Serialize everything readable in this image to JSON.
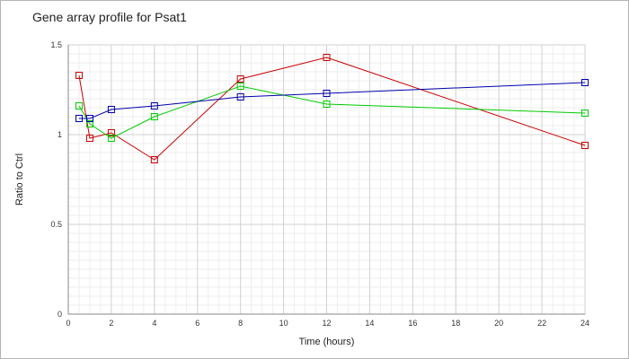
{
  "chart_data": {
    "type": "line",
    "title": "Gene array profile for Psat1",
    "xlabel": "Time (hours)",
    "ylabel": "Ratio to Ctrl",
    "xlim": [
      0,
      24
    ],
    "ylim": [
      0,
      1.5
    ],
    "xticks": [
      0,
      2,
      4,
      6,
      8,
      10,
      12,
      14,
      16,
      18,
      20,
      22,
      24
    ],
    "yticks": [
      0,
      0.5,
      1,
      1.5
    ],
    "ytick_labels": [
      "0",
      "0.5",
      "1",
      "1.5"
    ],
    "grid": true,
    "legend": "none",
    "marker": "open-square",
    "series": [
      {
        "color": "#cc0000",
        "x": [
          0.5,
          1,
          2,
          4,
          8,
          12,
          24
        ],
        "y": [
          1.33,
          0.98,
          1.01,
          0.86,
          1.31,
          1.43,
          0.94
        ]
      },
      {
        "color": "#00cc00",
        "x": [
          0.5,
          1,
          2,
          4,
          8,
          12,
          24
        ],
        "y": [
          1.16,
          1.06,
          0.98,
          1.1,
          1.27,
          1.17,
          1.12
        ]
      },
      {
        "color": "#0000aa",
        "x": [
          0.5,
          1,
          2,
          4,
          8,
          12,
          24
        ],
        "y": [
          1.09,
          1.09,
          1.14,
          1.16,
          1.21,
          1.23,
          1.29
        ]
      }
    ]
  }
}
